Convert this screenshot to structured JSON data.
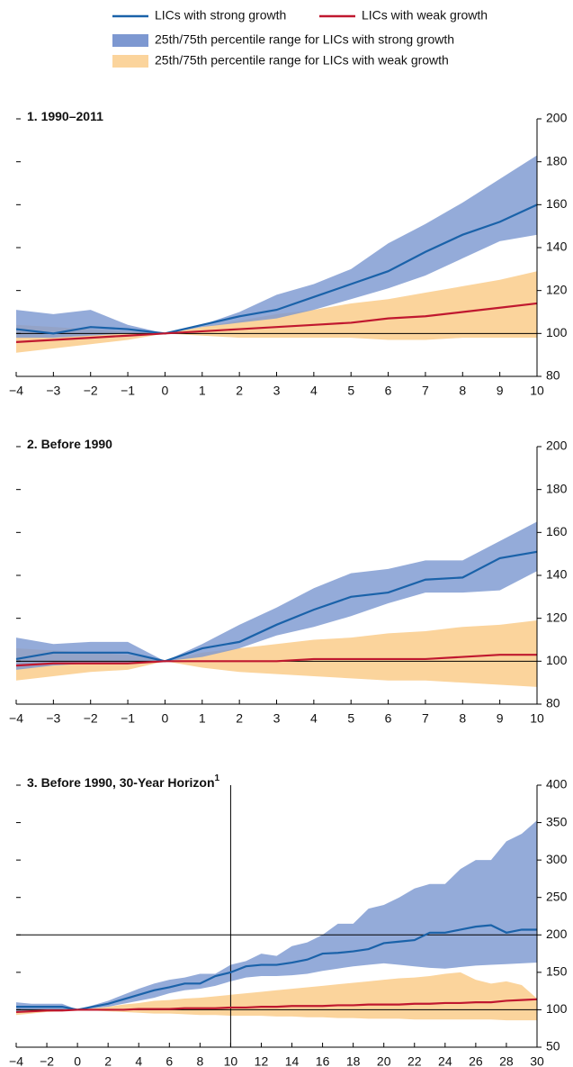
{
  "chart_data": [
    {
      "type": "line",
      "title": "1. 1990–2011",
      "x": [
        -4,
        -3,
        -2,
        -1,
        0,
        1,
        2,
        3,
        4,
        5,
        6,
        7,
        8,
        9,
        10
      ],
      "xlim": [
        -4,
        10
      ],
      "xticks": [
        {
          "value": -4,
          "label": "−4"
        },
        {
          "value": -3,
          "label": "−3"
        },
        {
          "value": -2,
          "label": "−2"
        },
        {
          "value": -1,
          "label": "−1"
        },
        0,
        1,
        2,
        3,
        4,
        5,
        6,
        7,
        8,
        9,
        10
      ],
      "ylim": [
        80,
        200
      ],
      "yticks": [
        80,
        100,
        120,
        140,
        160,
        180,
        200
      ],
      "hlines": [
        100
      ],
      "vlines": [],
      "series": [
        {
          "name": "LICs with strong growth",
          "color": "#1a62a9",
          "values": [
            102,
            100,
            103,
            102,
            100,
            104,
            108,
            111,
            117,
            123,
            129,
            138,
            146,
            152,
            160
          ]
        },
        {
          "name": "LICs with weak growth",
          "color": "#c0182f",
          "values": [
            96,
            97,
            98,
            99,
            100,
            101,
            102,
            103,
            104,
            105,
            107,
            108,
            110,
            112,
            114
          ]
        },
        {
          "name": "25th/75th percentile range for LICs with strong growth",
          "color": "#7d98d1",
          "lower": [
            98,
            98,
            99,
            100,
            100,
            103,
            105,
            107,
            111,
            116,
            121,
            127,
            135,
            143,
            146
          ],
          "upper": [
            111,
            109,
            111,
            104,
            100,
            104,
            110,
            118,
            123,
            130,
            142,
            151,
            161,
            172,
            183
          ]
        },
        {
          "name": "25th/75th percentile range for LICs with weak growth",
          "color": "#fbd49c",
          "lower": [
            91,
            93,
            95,
            97,
            100,
            99,
            98,
            98,
            98,
            98,
            97,
            97,
            98,
            98,
            98
          ],
          "upper": [
            104,
            103,
            102,
            101,
            100,
            103,
            106,
            109,
            111,
            114,
            116,
            119,
            122,
            125,
            129
          ]
        }
      ]
    },
    {
      "type": "line",
      "title": "2. Before 1990",
      "x": [
        -4,
        -3,
        -2,
        -1,
        0,
        1,
        2,
        3,
        4,
        5,
        6,
        7,
        8,
        9,
        10
      ],
      "xlim": [
        -4,
        10
      ],
      "xticks": [
        {
          "value": -4,
          "label": "−4"
        },
        {
          "value": -3,
          "label": "−3"
        },
        {
          "value": -2,
          "label": "−2"
        },
        {
          "value": -1,
          "label": "−1"
        },
        0,
        1,
        2,
        3,
        4,
        5,
        6,
        7,
        8,
        9,
        10
      ],
      "ylim": [
        80,
        200
      ],
      "yticks": [
        80,
        100,
        120,
        140,
        160,
        180,
        200
      ],
      "hlines": [
        100
      ],
      "vlines": [],
      "series": [
        {
          "name": "LICs with strong growth",
          "color": "#1a62a9",
          "values": [
            101,
            104,
            104,
            104,
            100,
            106,
            109,
            117,
            124,
            130,
            132,
            138,
            139,
            148,
            151
          ]
        },
        {
          "name": "LICs with weak growth",
          "color": "#c0182f",
          "values": [
            98,
            99,
            99,
            99,
            100,
            100,
            100,
            100,
            101,
            101,
            101,
            101,
            102,
            103,
            103
          ]
        },
        {
          "name": "25th/75th percentile range for LICs with strong growth",
          "color": "#7d98d1",
          "lower": [
            96,
            98,
            99,
            99,
            100,
            102,
            106,
            112,
            116,
            121,
            127,
            132,
            132,
            133,
            142
          ],
          "upper": [
            111,
            108,
            109,
            109,
            100,
            108,
            117,
            125,
            134,
            141,
            143,
            147,
            147,
            156,
            165
          ]
        },
        {
          "name": "25th/75th percentile range for LICs with weak growth",
          "color": "#fbd49c",
          "lower": [
            91,
            93,
            95,
            96,
            100,
            97,
            95,
            94,
            93,
            92,
            91,
            91,
            90,
            89,
            88
          ],
          "upper": [
            106,
            105,
            104,
            103,
            100,
            104,
            106,
            108,
            110,
            111,
            113,
            114,
            116,
            117,
            119
          ]
        }
      ]
    },
    {
      "type": "line",
      "title": "3. Before 1990, 30-Year Horizon",
      "title_superscript": "1",
      "x": [
        -4,
        -3,
        -2,
        -1,
        0,
        1,
        2,
        3,
        4,
        5,
        6,
        7,
        8,
        9,
        10,
        11,
        12,
        13,
        14,
        15,
        16,
        17,
        18,
        19,
        20,
        21,
        22,
        23,
        24,
        25,
        26,
        27,
        28,
        29,
        30
      ],
      "xlim": [
        -4,
        30
      ],
      "xticks": [
        {
          "value": -4,
          "label": "−4"
        },
        {
          "value": -2,
          "label": "−2"
        },
        0,
        2,
        4,
        6,
        8,
        10,
        12,
        14,
        16,
        18,
        20,
        22,
        24,
        26,
        28,
        30
      ],
      "ylim": [
        50,
        400
      ],
      "yticks": [
        50,
        100,
        150,
        200,
        250,
        300,
        350,
        400
      ],
      "hlines": [
        100,
        200
      ],
      "vlines": [
        10
      ],
      "series": [
        {
          "name": "LICs with strong growth",
          "color": "#1a62a9",
          "values": [
            104,
            104,
            104,
            104,
            100,
            104,
            108,
            114,
            120,
            126,
            130,
            135,
            135,
            145,
            150,
            158,
            160,
            160,
            163,
            167,
            175,
            176,
            178,
            181,
            189,
            191,
            193,
            203,
            203,
            207,
            211,
            213,
            203,
            207,
            207
          ]
        },
        {
          "name": "LICs with weak growth",
          "color": "#c0182f",
          "values": [
            97,
            98,
            99,
            99,
            100,
            100,
            100,
            100,
            101,
            101,
            101,
            102,
            102,
            102,
            103,
            103,
            104,
            104,
            105,
            105,
            105,
            106,
            106,
            107,
            107,
            107,
            108,
            108,
            109,
            109,
            110,
            110,
            112,
            113,
            114
          ]
        },
        {
          "name": "25th/75th percentile range for LICs with strong growth",
          "color": "#7d98d1",
          "lower": [
            98,
            99,
            100,
            100,
            100,
            102,
            104,
            108,
            112,
            116,
            122,
            126,
            128,
            132,
            138,
            143,
            145,
            145,
            146,
            148,
            152,
            155,
            158,
            160,
            162,
            160,
            158,
            156,
            155,
            157,
            159,
            160,
            161,
            162,
            163
          ],
          "upper": [
            110,
            108,
            108,
            108,
            100,
            106,
            112,
            120,
            128,
            135,
            140,
            143,
            148,
            148,
            160,
            165,
            175,
            172,
            185,
            190,
            200,
            215,
            215,
            235,
            240,
            250,
            262,
            268,
            268,
            288,
            300,
            300,
            325,
            335,
            353
          ]
        },
        {
          "name": "25th/75th percentile range for LICs with weak growth",
          "color": "#fbd49c",
          "lower": [
            93,
            95,
            97,
            98,
            100,
            99,
            98,
            97,
            96,
            95,
            95,
            94,
            93,
            93,
            92,
            92,
            92,
            91,
            91,
            90,
            90,
            89,
            89,
            88,
            88,
            88,
            87,
            87,
            87,
            87,
            87,
            87,
            86,
            86,
            86
          ],
          "upper": [
            102,
            101,
            101,
            101,
            100,
            102,
            104,
            107,
            109,
            112,
            113,
            115,
            116,
            118,
            120,
            122,
            124,
            126,
            128,
            130,
            132,
            134,
            136,
            138,
            140,
            142,
            143,
            145,
            148,
            150,
            140,
            135,
            138,
            133,
            115
          ]
        }
      ]
    }
  ]
}
